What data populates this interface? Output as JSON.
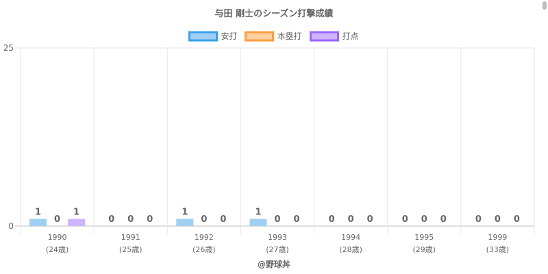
{
  "chart_data": {
    "type": "bar",
    "title": "与田 剛士のシーズン打撃成績",
    "categories": [
      "1990",
      "1991",
      "1992",
      "1993",
      "1994",
      "1995",
      "1999"
    ],
    "category_sublabels": [
      "(24歳)",
      "(25歳)",
      "(26歳)",
      "(27歳)",
      "(28歳)",
      "(29歳)",
      "(33歳)"
    ],
    "series": [
      {
        "name": "安打",
        "values": [
          1,
          0,
          1,
          1,
          0,
          0,
          0
        ],
        "color": "#9fcff3",
        "border_color": "#36a2eb"
      },
      {
        "name": "本塁打",
        "values": [
          0,
          0,
          0,
          0,
          0,
          0,
          0
        ],
        "color": "#ffcf9f",
        "border_color": "#ff9f40"
      },
      {
        "name": "打点",
        "values": [
          1,
          0,
          0,
          0,
          0,
          0,
          0
        ],
        "color": "#cfb5ff",
        "border_color": "#9966ff"
      }
    ],
    "ylim": [
      0,
      25
    ],
    "yticks": [
      0,
      25
    ],
    "grid": true,
    "legend_position": "top",
    "data_labels": true
  },
  "footer": {
    "credit": "@野球丼"
  }
}
